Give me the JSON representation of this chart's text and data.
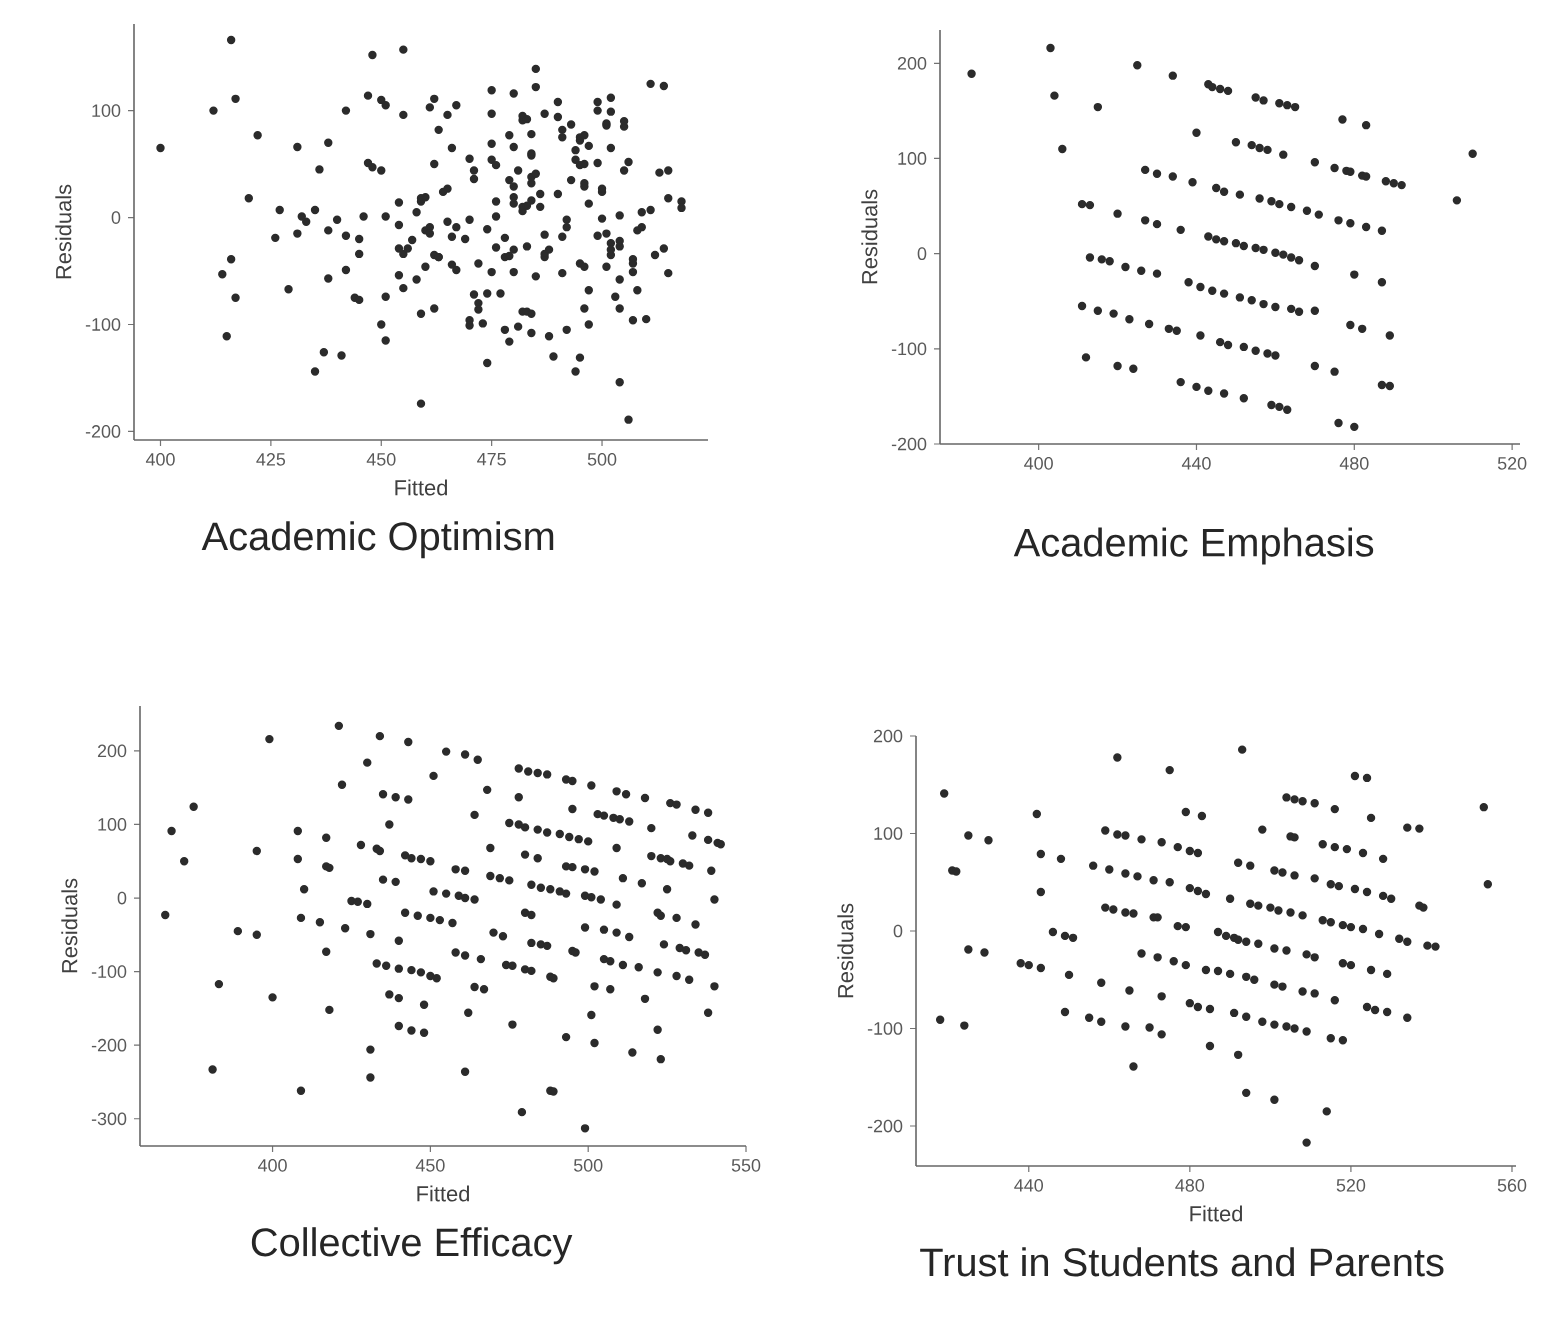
{
  "chart_data": [
    {
      "type": "scatter",
      "title": "Academic Optimism",
      "xlabel": "Fitted",
      "ylabel": "Residuals",
      "color": "#2b2b2b",
      "marker": "circle",
      "xlim": [
        394,
        524
      ],
      "ylim": [
        -208,
        181
      ],
      "xticks": [
        400,
        425,
        450,
        475,
        500
      ],
      "yticks": [
        -200,
        -100,
        0,
        100
      ],
      "x": [
        400,
        412,
        416,
        417,
        422,
        420,
        414,
        416,
        417,
        415,
        426,
        427,
        429,
        431,
        431,
        432,
        433,
        435,
        435,
        436,
        437,
        438,
        438,
        438,
        440,
        441,
        442,
        442,
        442,
        444,
        445,
        445,
        445,
        446,
        447,
        447,
        448,
        448,
        450,
        451,
        450,
        451,
        450,
        451,
        451,
        454,
        454,
        454,
        455,
        455,
        454,
        455,
        455,
        456,
        457,
        458,
        458,
        459,
        459,
        459,
        459,
        460,
        460,
        460,
        461,
        461,
        461,
        462,
        462,
        462,
        462,
        463,
        463,
        463,
        464,
        465,
        465,
        465,
        466,
        466,
        466,
        467,
        467,
        467,
        469,
        470,
        470,
        470,
        470,
        471,
        471,
        471,
        472,
        472,
        472,
        473,
        474,
        474,
        474,
        475,
        475,
        475,
        475,
        476,
        476,
        476,
        475,
        476,
        477,
        478,
        478,
        478,
        479,
        479,
        479,
        479,
        480,
        480,
        480,
        480,
        480,
        480,
        480,
        481,
        481,
        482,
        482,
        482,
        482,
        482,
        483,
        483,
        483,
        483,
        484,
        484,
        484,
        484,
        484,
        484,
        484,
        484,
        485,
        485,
        485,
        485,
        486,
        486,
        487,
        487,
        487,
        487,
        488,
        488,
        489,
        490,
        490,
        490,
        491,
        491,
        491,
        491,
        492,
        492,
        492,
        493,
        493,
        494,
        494,
        494,
        495,
        495,
        495,
        495,
        495,
        496,
        496,
        496,
        496,
        496,
        496,
        497,
        497,
        497,
        497,
        499,
        499,
        499,
        499,
        500,
        500,
        500,
        501,
        501,
        501,
        501,
        502,
        502,
        502,
        502,
        502,
        502,
        503,
        504,
        504,
        504,
        504,
        504,
        504,
        505,
        505,
        505,
        506,
        506,
        507,
        507,
        507,
        507,
        508,
        508,
        509,
        509,
        510,
        511,
        512,
        511,
        514,
        513,
        514,
        515,
        515,
        515,
        518,
        518
      ],
      "values": [
        65,
        100,
        166,
        111,
        77,
        18,
        -53,
        -39,
        -75,
        -111,
        -19,
        7,
        -67,
        -15,
        66,
        1,
        -4,
        -144,
        7,
        45,
        -126,
        -57,
        -12,
        70,
        -2,
        -129,
        -17,
        -49,
        100,
        -75,
        -77,
        -20,
        -34,
        1,
        114,
        51,
        152,
        47,
        110,
        105,
        44,
        1,
        -100,
        -115,
        -74,
        -7,
        -54,
        14,
        157,
        96,
        -29,
        -34,
        -66,
        -29,
        -21,
        -58,
        5,
        -90,
        15,
        18,
        -174,
        -46,
        19,
        -12,
        -9,
        103,
        -15,
        -85,
        50,
        111,
        -35,
        -37,
        82,
        -37,
        24,
        27,
        96,
        -4,
        65,
        -18,
        -44,
        105,
        -49,
        -9,
        -20,
        55,
        -96,
        -101,
        -2,
        -72,
        36,
        44,
        -43,
        -80,
        -86,
        -99,
        -11,
        -136,
        -71,
        119,
        97,
        69,
        54,
        49,
        15,
        1,
        -51,
        -28,
        -71,
        -19,
        -37,
        -105,
        -36,
        -116,
        35,
        77,
        66,
        29,
        19,
        116,
        13,
        -51,
        -30,
        -102,
        44,
        6,
        10,
        -88,
        91,
        95,
        92,
        -27,
        11,
        -88,
        78,
        38,
        58,
        32,
        16,
        -90,
        -108,
        60,
        41,
        139,
        122,
        -55,
        22,
        10,
        -37,
        -34,
        97,
        -16,
        -30,
        -111,
        -130,
        22,
        94,
        108,
        -52,
        -18,
        75,
        82,
        -9,
        -2,
        -105,
        35,
        87,
        -144,
        63,
        54,
        72,
        -131,
        -43,
        49,
        75,
        -46,
        32,
        77,
        -85,
        50,
        29,
        13,
        -68,
        67,
        -100,
        51,
        108,
        100,
        -17,
        24,
        -1,
        27,
        86,
        -15,
        -46,
        88,
        112,
        99,
        65,
        -24,
        -30,
        -35,
        -74,
        -85,
        -27,
        2,
        -22,
        -58,
        -154,
        90,
        85,
        44,
        -189,
        52,
        -39,
        -51,
        -43,
        -96,
        -12,
        -68,
        -9,
        5,
        -95,
        7,
        -35,
        125,
        123,
        42,
        -29,
        44,
        18,
        -52,
        15,
        9
      ]
    },
    {
      "type": "scatter",
      "title": "Academic Emphasis",
      "ylabel": "Residuals",
      "color": "#2b2b2b",
      "marker": "circle",
      "xlim": [
        375,
        522
      ],
      "ylim": [
        -200,
        235
      ],
      "xticks": [
        400,
        440,
        480,
        520
      ],
      "yticks": [
        -200,
        -100,
        0,
        100,
        200
      ],
      "x": [
        383,
        403,
        404,
        415,
        406,
        425,
        434,
        440,
        443,
        444,
        446,
        448,
        455,
        457,
        461,
        463,
        465,
        477,
        483,
        450,
        454,
        456,
        458,
        462,
        470,
        475,
        478,
        479,
        482,
        483,
        488,
        490,
        492,
        506,
        510,
        427,
        430,
        434,
        439,
        445,
        447,
        451,
        456,
        459,
        461,
        464,
        468,
        471,
        476,
        479,
        483,
        487,
        411,
        413,
        420,
        427,
        430,
        436,
        443,
        445,
        447,
        450,
        452,
        455,
        457,
        460,
        462,
        464,
        466,
        470,
        480,
        487,
        489,
        413,
        416,
        418,
        422,
        426,
        430,
        438,
        441,
        444,
        447,
        451,
        454,
        457,
        460,
        464,
        466,
        470,
        479,
        482,
        411,
        415,
        419,
        423,
        428,
        433,
        435,
        441,
        446,
        448,
        452,
        455,
        458,
        460,
        470,
        475,
        487,
        489,
        412,
        420,
        424,
        436,
        440,
        443,
        447,
        452,
        459,
        461,
        463,
        476,
        480
      ],
      "values": [
        189,
        216,
        166,
        154,
        110,
        198,
        187,
        127,
        178,
        175,
        173,
        171,
        164,
        161,
        158,
        156,
        154,
        141,
        135,
        117,
        114,
        111,
        109,
        104,
        96,
        90,
        87,
        86,
        82,
        81,
        76,
        74,
        72,
        56,
        105,
        88,
        84,
        81,
        75,
        69,
        65,
        62,
        58,
        55,
        52,
        49,
        45,
        41,
        35,
        32,
        28,
        24,
        52,
        51,
        42,
        35,
        31,
        25,
        18,
        15,
        13,
        11,
        8,
        6,
        4,
        1,
        -1,
        -4,
        -7,
        -13,
        -22,
        -30,
        -86,
        -4,
        -6,
        -8,
        -14,
        -18,
        -21,
        -30,
        -35,
        -39,
        -42,
        -46,
        -49,
        -53,
        -56,
        -58,
        -61,
        -60,
        -75,
        -79,
        -55,
        -60,
        -63,
        -69,
        -74,
        -79,
        -81,
        -86,
        -93,
        -96,
        -98,
        -102,
        -105,
        -107,
        -118,
        -124,
        -138,
        -139,
        -109,
        -118,
        -121,
        -135,
        -140,
        -144,
        -147,
        -152,
        -159,
        -161,
        -164,
        -178,
        -182
      ]
    },
    {
      "type": "scatter",
      "title": "Collective Efficacy",
      "xlabel": "Fitted",
      "ylabel": "Residuals",
      "color": "#2b2b2b",
      "marker": "circle",
      "xlim": [
        358,
        550
      ],
      "ylim": [
        -337,
        261
      ],
      "xticks": [
        400,
        450,
        500,
        550
      ],
      "yticks": [
        -300,
        -200,
        -100,
        0,
        100,
        200
      ],
      "x": [
        366,
        368,
        372,
        375,
        383,
        381,
        389,
        395,
        395,
        399,
        400,
        408,
        408,
        410,
        409,
        409,
        415,
        417,
        417,
        418,
        417,
        418,
        421,
        422,
        423,
        425,
        427,
        430,
        428,
        430,
        431,
        431,
        431,
        433,
        434,
        434,
        435,
        433,
        436,
        435,
        439,
        437,
        437,
        440,
        439,
        443,
        443,
        440,
        440,
        440,
        444,
        444,
        448,
        448,
        442,
        442,
        444,
        447,
        450,
        446,
        450,
        453,
        447,
        450,
        452,
        451,
        451,
        455,
        459,
        461,
        464,
        455,
        461,
        465,
        468,
        458,
        461,
        457,
        458,
        461,
        464,
        462,
        461,
        464,
        466,
        467,
        469,
        469,
        472,
        475,
        470,
        473,
        474,
        476,
        480,
        482,
        476,
        478,
        481,
        484,
        487,
        478,
        475,
        478,
        480,
        484,
        487,
        491,
        494,
        497,
        500,
        480,
        484,
        482,
        485,
        488,
        491,
        493,
        499,
        501,
        504,
        480,
        482,
        482,
        485,
        487,
        488,
        489,
        479,
        488,
        489,
        493,
        495,
        495,
        493,
        495,
        499,
        502,
        495,
        496,
        493,
        499,
        501,
        503,
        505,
        499,
        502,
        501,
        502,
        505,
        505,
        507,
        507,
        508,
        510,
        513,
        509,
        509,
        509,
        513,
        511,
        514,
        509,
        512,
        511,
        517,
        516,
        518,
        518,
        520,
        520,
        522,
        523,
        522,
        522,
        523,
        523,
        525,
        526,
        525,
        524,
        526,
        528,
        528,
        528,
        530,
        532,
        529,
        531,
        532,
        533,
        534,
        534,
        538,
        535,
        537,
        538,
        538,
        541,
        542,
        539,
        540,
        540
      ],
      "values": [
        -23,
        91,
        50,
        124,
        -117,
        -233,
        -45,
        -50,
        64,
        216,
        -135,
        91,
        53,
        12,
        -27,
        -262,
        -33,
        82,
        43,
        41,
        -73,
        -152,
        234,
        154,
        -41,
        -4,
        -5,
        -8,
        72,
        184,
        -49,
        -206,
        -244,
        67,
        64,
        220,
        141,
        -89,
        -92,
        25,
        22,
        100,
        -131,
        -136,
        137,
        134,
        212,
        -58,
        -96,
        -174,
        -98,
        -180,
        -183,
        -145,
        -20,
        58,
        54,
        53,
        50,
        -24,
        -27,
        -30,
        -101,
        -106,
        -109,
        166,
        9,
        6,
        3,
        0,
        -2,
        199,
        195,
        188,
        147,
        39,
        37,
        -34,
        -74,
        -78,
        113,
        -156,
        -236,
        -121,
        -83,
        -124,
        68,
        30,
        27,
        24,
        -47,
        -52,
        -91,
        -92,
        -97,
        -99,
        -172,
        176,
        172,
        170,
        168,
        137,
        102,
        100,
        96,
        93,
        89,
        87,
        83,
        80,
        77,
        59,
        54,
        18,
        14,
        12,
        9,
        6,
        3,
        1,
        -2,
        -20,
        -23,
        -61,
        -63,
        -65,
        -107,
        -109,
        -291,
        -262,
        -263,
        161,
        159,
        121,
        43,
        42,
        39,
        36,
        -72,
        -74,
        -189,
        -313,
        153,
        114,
        112,
        -40,
        -120,
        -159,
        -197,
        -43,
        -83,
        -86,
        -124,
        109,
        107,
        104,
        68,
        -9,
        -47,
        -53,
        -91,
        -210,
        145,
        141,
        27,
        20,
        -94,
        136,
        -137,
        95,
        57,
        -20,
        -24,
        -101,
        -179,
        -219,
        54,
        53,
        50,
        12,
        -63,
        129,
        127,
        -27,
        -106,
        47,
        44,
        -68,
        -71,
        -111,
        85,
        120,
        -36,
        116,
        -74,
        -77,
        -156,
        79,
        75,
        73,
        37,
        -2,
        -120
      ]
    },
    {
      "type": "scatter",
      "title": "Trust in Students and Parents",
      "xlabel": "Fitted",
      "ylabel": "Residuals",
      "color": "#2b2b2b",
      "marker": "circle",
      "xlim": [
        412,
        561
      ],
      "ylim": [
        -241,
        200
      ],
      "xticks": [
        440,
        480,
        520,
        560
      ],
      "yticks": [
        -200,
        -100,
        0,
        100,
        200
      ],
      "x": [
        419,
        418,
        421,
        422,
        424,
        425,
        425,
        429,
        430,
        438,
        440,
        442,
        443,
        443,
        443,
        448,
        446,
        449,
        451,
        450,
        449,
        456,
        460,
        455,
        458,
        458,
        459,
        462,
        464,
        462,
        459,
        461,
        464,
        466,
        464,
        467,
        471,
        468,
        473,
        475,
        471,
        472,
        468,
        472,
        465,
        464,
        466,
        470,
        473,
        473,
        475,
        477,
        479,
        480,
        482,
        483,
        477,
        479,
        476,
        479,
        480,
        482,
        485,
        485,
        480,
        482,
        484,
        484,
        487,
        487,
        489,
        491,
        492,
        494,
        497,
        490,
        492,
        495,
        495,
        497,
        500,
        502,
        505,
        508,
        493,
        492,
        494,
        501,
        498,
        490,
        494,
        496,
        491,
        494,
        498,
        501,
        504,
        506,
        509,
        501,
        503,
        506,
        511,
        501,
        504,
        509,
        511,
        501,
        503,
        508,
        511,
        516,
        504,
        506,
        508,
        511,
        505,
        506,
        513,
        516,
        519,
        523,
        528,
        516,
        521,
        524,
        525,
        513,
        515,
        518,
        520,
        523,
        527,
        515,
        517,
        521,
        524,
        528,
        530,
        518,
        520,
        525,
        529,
        515,
        518,
        524,
        526,
        529,
        509,
        514,
        534,
        537,
        532,
        534,
        539,
        541,
        537,
        538,
        534,
        553,
        554
      ],
      "values": [
        141,
        -91,
        62,
        61,
        -97,
        98,
        -19,
        -22,
        93,
        -33,
        -35,
        120,
        79,
        40,
        -38,
        74,
        -1,
        -5,
        -7,
        -45,
        -83,
        67,
        63,
        -89,
        -93,
        -53,
        103,
        99,
        98,
        178,
        24,
        22,
        19,
        18,
        59,
        56,
        52,
        94,
        91,
        50,
        14,
        14,
        -23,
        -27,
        -61,
        -98,
        -139,
        -99,
        -106,
        -67,
        165,
        86,
        122,
        82,
        80,
        118,
        5,
        4,
        -31,
        -35,
        -74,
        -78,
        -80,
        -118,
        44,
        41,
        38,
        -40,
        -41,
        -1,
        -5,
        -7,
        -9,
        -11,
        -13,
        33,
        70,
        67,
        28,
        26,
        24,
        21,
        19,
        16,
        186,
        -127,
        -166,
        -173,
        104,
        -44,
        -47,
        -50,
        -84,
        -88,
        -93,
        -96,
        -98,
        -100,
        -103,
        62,
        60,
        57,
        54,
        -18,
        -20,
        -24,
        -27,
        -55,
        -57,
        -62,
        -64,
        -71,
        137,
        135,
        133,
        131,
        97,
        96,
        89,
        86,
        84,
        80,
        74,
        125,
        159,
        157,
        116,
        11,
        9,
        6,
        4,
        2,
        -3,
        48,
        46,
        43,
        40,
        36,
        33,
        -33,
        -35,
        -40,
        -44,
        -110,
        -112,
        -78,
        -81,
        -83,
        -217,
        -185,
        106,
        105,
        -8,
        -11,
        -15,
        -16,
        26,
        24,
        -89,
        127,
        48
      ]
    }
  ]
}
